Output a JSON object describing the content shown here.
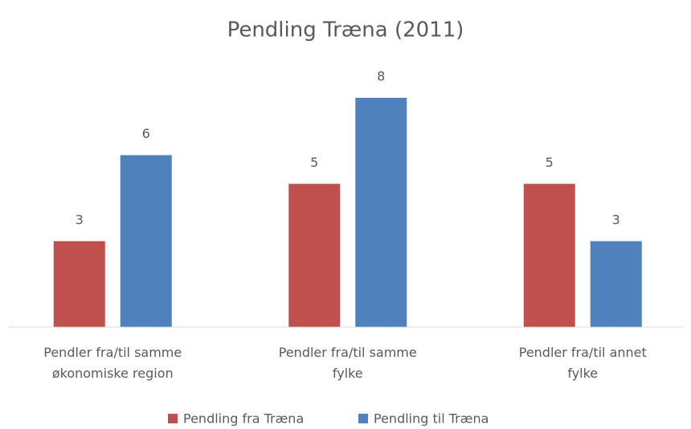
{
  "chart_data": {
    "type": "bar",
    "title": "Pendling Træna (2011)",
    "categories": [
      "Pendler fra/til samme økonomiske region",
      "Pendler fra/til samme fylke",
      "Pendler fra/til annet fylke"
    ],
    "series": [
      {
        "name": "Pendling fra Træna",
        "color": "#c0504d",
        "values": [
          3,
          5,
          5
        ]
      },
      {
        "name": "Pendling til Træna",
        "color": "#4f81bd",
        "values": [
          6,
          8,
          3
        ]
      }
    ],
    "ylim": [
      0,
      8
    ],
    "legend": "bottom"
  }
}
